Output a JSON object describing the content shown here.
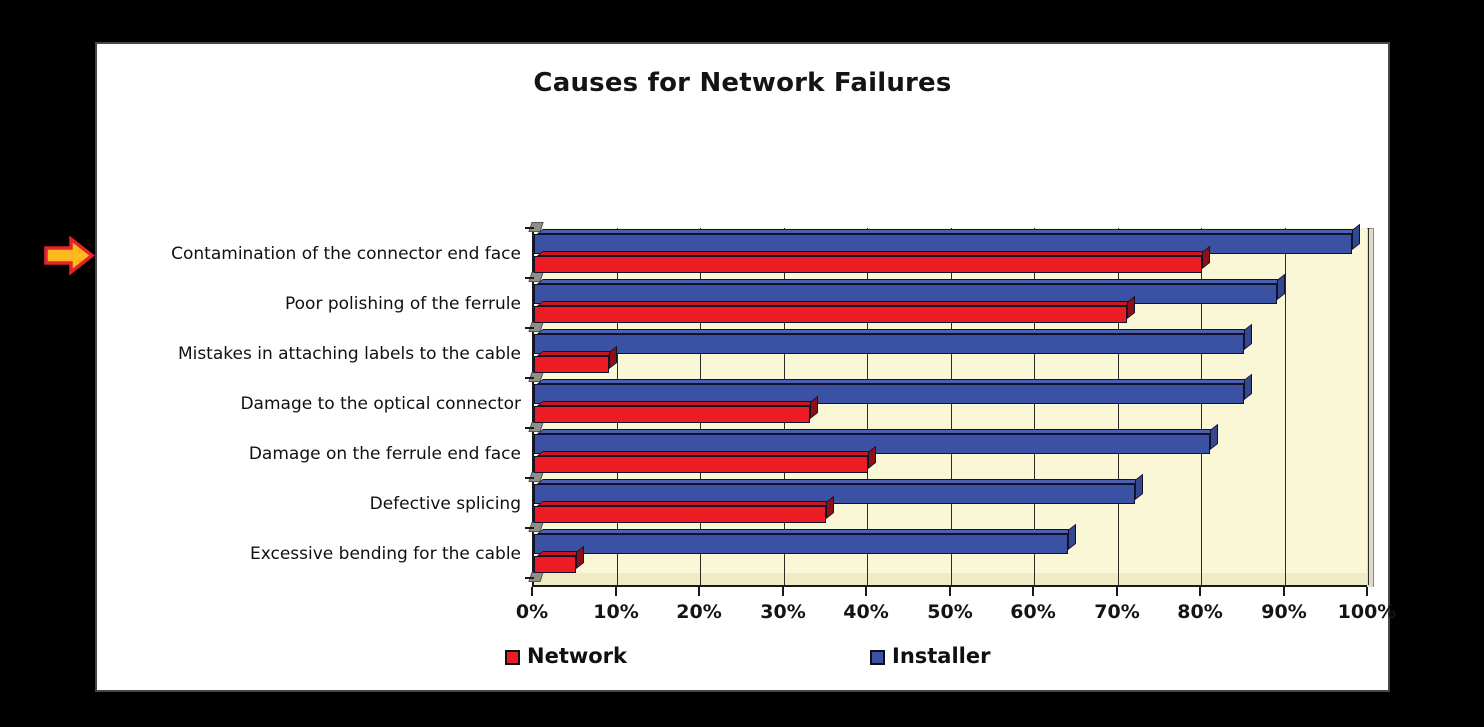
{
  "window": {
    "title": "Causes for Network Failures"
  },
  "chart_data": {
    "type": "bar",
    "orientation": "horizontal",
    "title": "Causes for Network Failures",
    "categories": [
      "Contamination of the connector end face",
      "Poor polishing of the ferrule",
      "Mistakes  in attaching labels to the cable",
      "Damage to the  optical connector",
      "Damage on the ferrule end face",
      "Defective splicing",
      "Excessive bending for the cable"
    ],
    "series": [
      {
        "name": "Network",
        "color": "#EC1B24",
        "cap_color": "#8C1016",
        "top_color": "#C8161D",
        "values": [
          80,
          71,
          9,
          33,
          40,
          35,
          5
        ]
      },
      {
        "name": "Installer",
        "color": "#3B51A3",
        "cap_color": "#33488F",
        "top_color": "#4A5FB0",
        "values": [
          98,
          89,
          85,
          85,
          81,
          72,
          64
        ]
      }
    ],
    "x_ticks": [
      "0%",
      "10%",
      "20%",
      "30%",
      "40%",
      "50%",
      "60%",
      "70%",
      "80%",
      "90%",
      "100%"
    ],
    "xlim": [
      0,
      100
    ],
    "grid": true,
    "plot_background": "#FAF7D6",
    "legend_position": "bottom"
  },
  "legend": {
    "items": [
      {
        "label": "Network",
        "color": "#EC1B24"
      },
      {
        "label": "Installer",
        "color": "#3B51A3"
      }
    ]
  },
  "annotation_arrow": {
    "points_at": "Contamination of the connector end face",
    "fill": "#FFB91E",
    "stroke": "#E3242B"
  }
}
